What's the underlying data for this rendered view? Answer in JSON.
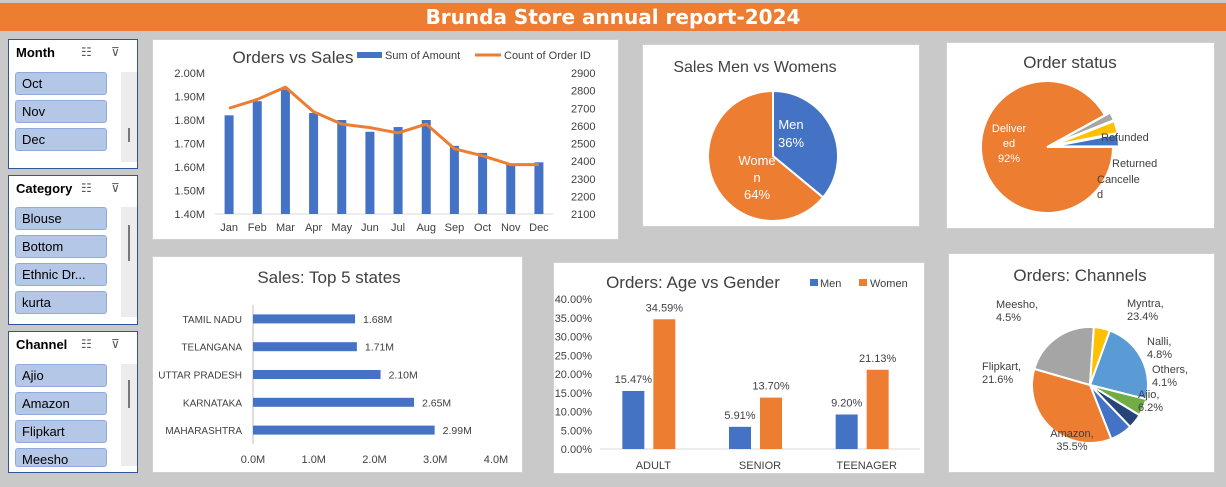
{
  "header": {
    "title": "Brunda Store annual report-2024"
  },
  "slicers": {
    "month": {
      "title": "Month",
      "items": [
        "Oct",
        "Nov",
        "Dec"
      ]
    },
    "category": {
      "title": "Category",
      "items": [
        "Blouse",
        "Bottom",
        "Ethnic Dr...",
        "kurta"
      ]
    },
    "channel": {
      "title": "Channel",
      "items": [
        "Ajio",
        "Amazon",
        "Flipkart",
        "Meesho"
      ]
    }
  },
  "colors": {
    "blue": "#4472c4",
    "orange": "#ed7d31",
    "gray": "#a5a5a5",
    "yellow": "#ffc000",
    "lightblue": "#5b9bd5",
    "green": "#70ad47",
    "navy": "#264478"
  },
  "chart_data": [
    {
      "id": "orders_vs_sales",
      "type": "bar+line",
      "title": "Orders vs Sales",
      "categories": [
        "Jan",
        "Feb",
        "Mar",
        "Apr",
        "May",
        "Jun",
        "Jul",
        "Aug",
        "Sep",
        "Oct",
        "Nov",
        "Dec"
      ],
      "series": [
        {
          "name": "Sum of Amount",
          "type": "bar",
          "axis": "left",
          "values": [
            1.82,
            1.88,
            1.93,
            1.83,
            1.8,
            1.75,
            1.77,
            1.8,
            1.69,
            1.66,
            1.61,
            1.62
          ]
        },
        {
          "name": "Count of Order ID",
          "type": "line",
          "axis": "right",
          "values": [
            2700,
            2750,
            2820,
            2680,
            2610,
            2590,
            2560,
            2610,
            2470,
            2430,
            2380,
            2380
          ]
        }
      ],
      "ylim_left": [
        1.4,
        2.0
      ],
      "ylim_right": [
        2100,
        2900
      ],
      "yticks_left": [
        "1.40M",
        "1.50M",
        "1.60M",
        "1.70M",
        "1.80M",
        "1.90M",
        "2.00M"
      ],
      "yticks_right": [
        "2100",
        "2200",
        "2300",
        "2400",
        "2500",
        "2600",
        "2700",
        "2800",
        "2900"
      ],
      "legend": "top"
    },
    {
      "id": "sales_men_women",
      "type": "pie",
      "title": "Sales Men vs Womens",
      "labels": [
        "Men",
        "Women"
      ],
      "values": [
        36,
        64
      ],
      "display_labels": [
        [
          "Men",
          "36%"
        ],
        [
          "Wome",
          "n",
          "64%"
        ]
      ]
    },
    {
      "id": "order_status",
      "type": "pie",
      "title": "Order status",
      "labels": [
        "Delivered",
        "Refunded",
        "Returned",
        "Cancelled"
      ],
      "values": [
        92,
        2,
        3,
        3
      ],
      "display_labels": [
        [
          "Deliver",
          "ed",
          "92%"
        ],
        [
          "Refunded"
        ],
        [
          "Returned"
        ],
        [
          "Cancelle",
          "d"
        ]
      ]
    },
    {
      "id": "top5_states",
      "type": "bar",
      "orientation": "horizontal",
      "title": "Sales: Top 5 states",
      "categories": [
        "TAMIL NADU",
        "TELANGANA",
        "UTTAR PRADESH",
        "KARNATAKA",
        "MAHARASHTRA"
      ],
      "values": [
        1.68,
        1.71,
        2.1,
        2.65,
        2.99
      ],
      "data_labels": [
        "1.68M",
        "1.71M",
        "2.10M",
        "2.65M",
        "2.99M"
      ],
      "xlim": [
        0,
        4
      ],
      "xticks": [
        "0.0M",
        "1.0M",
        "2.0M",
        "3.0M",
        "4.0M"
      ]
    },
    {
      "id": "age_vs_gender",
      "type": "bar",
      "title": "Orders: Age vs Gender",
      "categories": [
        "ADULT",
        "SENIOR",
        "TEENAGER"
      ],
      "series": [
        {
          "name": "Men",
          "values": [
            15.47,
            5.91,
            9.2
          ],
          "data_labels": [
            "15.47%",
            "5.91%",
            "9.20%"
          ]
        },
        {
          "name": "Women",
          "values": [
            34.59,
            13.7,
            21.13
          ],
          "data_labels": [
            "34.59%",
            "13.70%",
            "21.13%"
          ]
        }
      ],
      "ylim": [
        0,
        40
      ],
      "yticks": [
        "0.00%",
        "5.00%",
        "10.00%",
        "15.00%",
        "20.00%",
        "25.00%",
        "30.00%",
        "35.00%",
        "40.00%"
      ],
      "legend": "top-right"
    },
    {
      "id": "channels",
      "type": "pie",
      "title": "Orders: Channels",
      "labels": [
        "Myntra",
        "Nalli",
        "Others",
        "Ajio",
        "Amazon",
        "Flipkart",
        "Meesho"
      ],
      "values": [
        23.4,
        4.8,
        4.1,
        6.2,
        35.5,
        21.6,
        4.5
      ],
      "display_labels": [
        [
          "Myntra,",
          "23.4%"
        ],
        [
          "Nalli,",
          "4.8%"
        ],
        [
          "Others,",
          "4.1%"
        ],
        [
          "Ajio,",
          "6.2%"
        ],
        [
          "Amazon,",
          "35.5%"
        ],
        [
          "Flipkart,",
          "21.6%"
        ],
        [
          "Meesho,",
          "4.5%"
        ]
      ]
    }
  ]
}
